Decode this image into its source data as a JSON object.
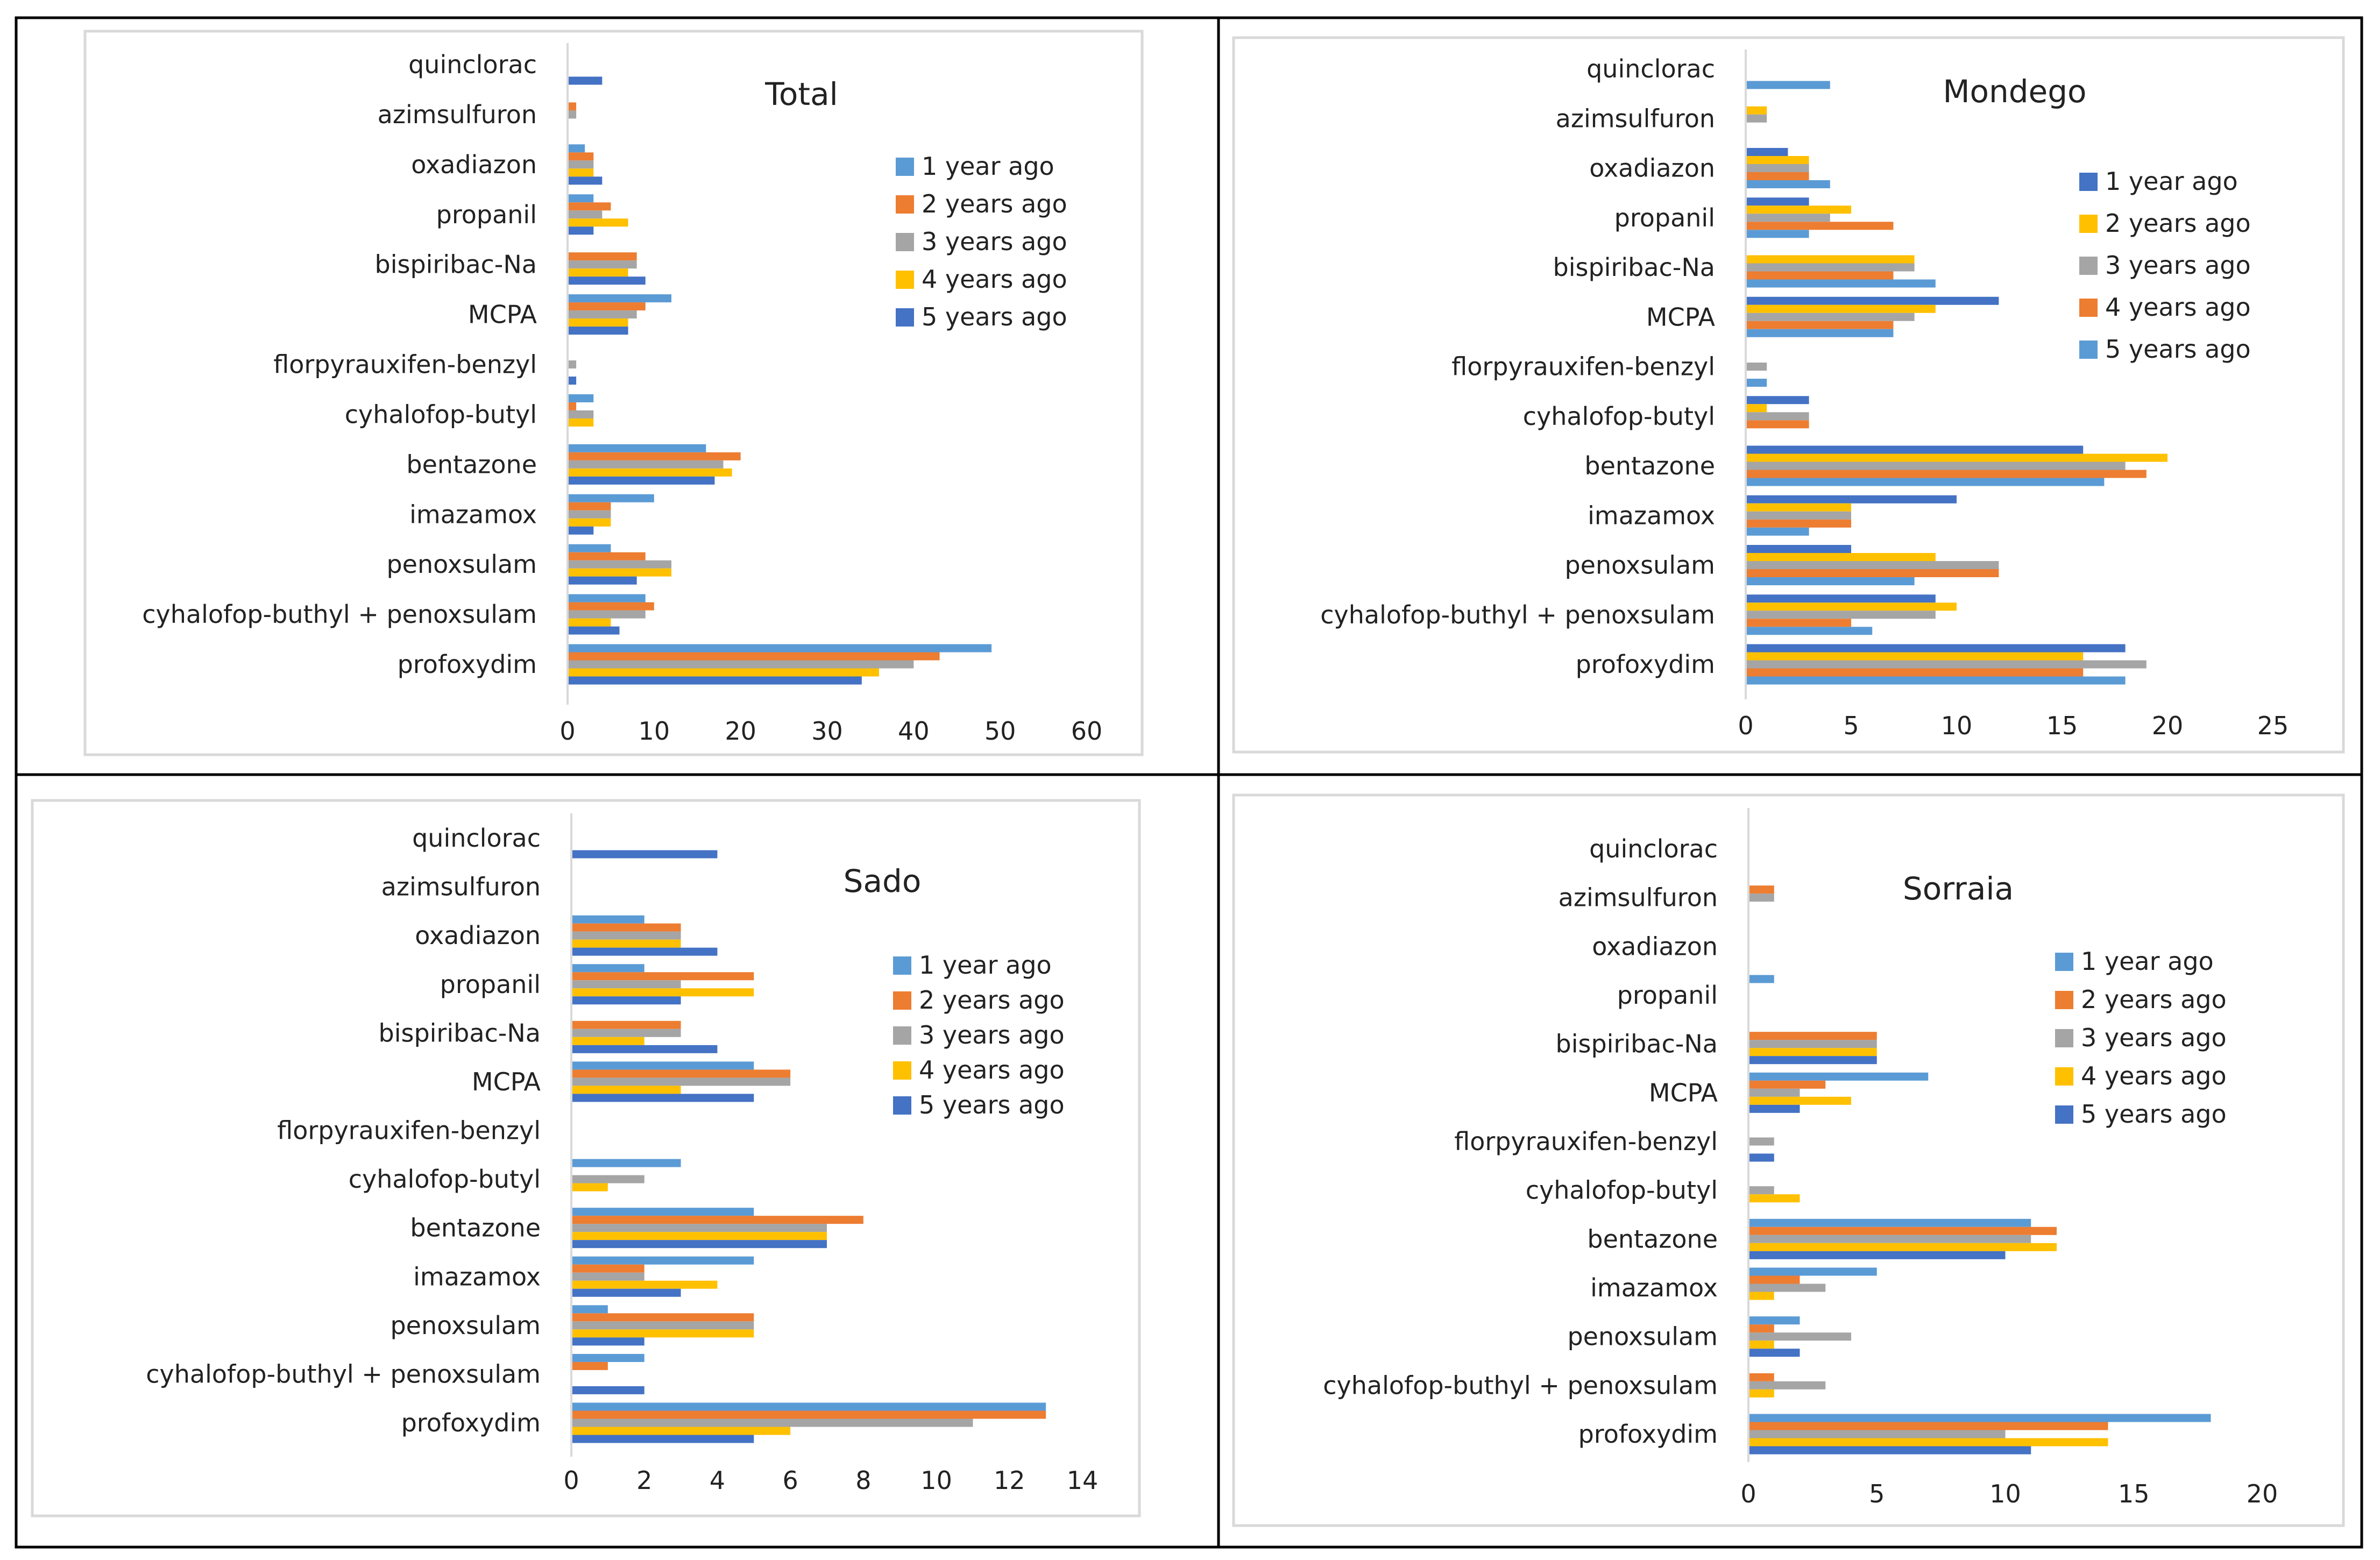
{
  "series_names": [
    "1 year ago",
    "2 years ago",
    "3 years ago",
    "4 years ago",
    "5 years ago"
  ],
  "chart_data": [
    {
      "type": "bar",
      "orientation": "horizontal",
      "title": "Total",
      "categories": [
        "quinclorac",
        "azimsulfuron",
        "oxadiazon",
        "propanil",
        "bispiribac-Na",
        "MCPA",
        "florpyrauxifen-benzyl",
        "cyhalofop-butyl",
        "bentazone",
        "imazamox",
        "penoxsulam",
        "cyhalofop-buthyl + penoxsulam",
        "profoxydim"
      ],
      "xlim": [
        0,
        60
      ],
      "xticks": [
        "0",
        "10",
        "20",
        "30",
        "40",
        "50",
        "60"
      ],
      "legend": "right",
      "series": [
        {
          "name": "1 year ago",
          "color": "#5B9BD5",
          "values": [
            0,
            0,
            2,
            3,
            0,
            12,
            0,
            3,
            16,
            10,
            5,
            9,
            49
          ]
        },
        {
          "name": "2 years ago",
          "color": "#ED7D31",
          "values": [
            0,
            1,
            3,
            5,
            8,
            9,
            0,
            1,
            20,
            5,
            9,
            10,
            43
          ]
        },
        {
          "name": "3 years ago",
          "color": "#A5A5A5",
          "values": [
            0,
            1,
            3,
            4,
            8,
            8,
            1,
            3,
            18,
            5,
            12,
            9,
            40
          ]
        },
        {
          "name": "4 years ago",
          "color": "#FFC000",
          "values": [
            0,
            0,
            3,
            7,
            7,
            7,
            0,
            3,
            19,
            5,
            12,
            5,
            36
          ]
        },
        {
          "name": "5 years ago",
          "color": "#4472C4",
          "values": [
            4,
            0,
            4,
            3,
            9,
            7,
            1,
            0,
            17,
            3,
            8,
            6,
            34
          ]
        }
      ]
    },
    {
      "type": "bar",
      "orientation": "horizontal",
      "title": "Mondego",
      "categories": [
        "quinclorac",
        "azimsulfuron",
        "oxadiazon",
        "propanil",
        "bispiribac-Na",
        "MCPA",
        "florpyrauxifen-benzyl",
        "cyhalofop-butyl",
        "bentazone",
        "imazamox",
        "penoxsulam",
        "cyhalofop-buthyl + penoxsulam",
        "profoxydim"
      ],
      "xlim": [
        0,
        25
      ],
      "xticks": [
        "0",
        "5",
        "10",
        "15",
        "20",
        "25"
      ],
      "legend": "right",
      "series": [
        {
          "name": "1 year ago",
          "color": "#4472C4",
          "values": [
            0,
            0,
            2,
            3,
            0,
            12,
            0,
            3,
            16,
            10,
            5,
            9,
            18
          ]
        },
        {
          "name": "2 years ago",
          "color": "#FFC000",
          "values": [
            0,
            1,
            3,
            5,
            8,
            9,
            0,
            1,
            20,
            5,
            9,
            10,
            16
          ]
        },
        {
          "name": "3 years ago",
          "color": "#A5A5A5",
          "values": [
            0,
            1,
            3,
            4,
            8,
            8,
            1,
            3,
            18,
            5,
            12,
            9,
            19
          ]
        },
        {
          "name": "4 years ago",
          "color": "#ED7D31",
          "values": [
            0,
            0,
            3,
            7,
            7,
            7,
            0,
            3,
            19,
            5,
            12,
            5,
            16
          ]
        },
        {
          "name": "5 years ago",
          "color": "#5B9BD5",
          "values": [
            4,
            0,
            4,
            3,
            9,
            7,
            1,
            0,
            17,
            3,
            8,
            6,
            18
          ]
        }
      ]
    },
    {
      "type": "bar",
      "orientation": "horizontal",
      "title": "Sado",
      "categories": [
        "quinclorac",
        "azimsulfuron",
        "oxadiazon",
        "propanil",
        "bispiribac-Na",
        "MCPA",
        "florpyrauxifen-benzyl",
        "cyhalofop-butyl",
        "bentazone",
        "imazamox",
        "penoxsulam",
        "cyhalofop-buthyl + penoxsulam",
        "profoxydim"
      ],
      "xlim": [
        0,
        14
      ],
      "xticks": [
        "0",
        "2",
        "4",
        "6",
        "8",
        "10",
        "12",
        "14"
      ],
      "legend": "right",
      "series": [
        {
          "name": "1 year ago",
          "color": "#5B9BD5",
          "values": [
            0,
            0,
            2,
            2,
            0,
            5,
            0,
            3,
            5,
            5,
            1,
            2,
            13
          ]
        },
        {
          "name": "2 years ago",
          "color": "#ED7D31",
          "values": [
            0,
            0,
            3,
            5,
            3,
            6,
            0,
            0,
            8,
            2,
            5,
            1,
            13
          ]
        },
        {
          "name": "3 years ago",
          "color": "#A5A5A5",
          "values": [
            0,
            0,
            3,
            3,
            3,
            6,
            0,
            2,
            7,
            2,
            5,
            0,
            11
          ]
        },
        {
          "name": "4 years ago",
          "color": "#FFC000",
          "values": [
            0,
            0,
            3,
            5,
            2,
            3,
            0,
            1,
            7,
            4,
            5,
            0,
            6
          ]
        },
        {
          "name": "5 years ago",
          "color": "#4472C4",
          "values": [
            4,
            0,
            4,
            3,
            4,
            5,
            0,
            0,
            7,
            3,
            2,
            2,
            5
          ]
        }
      ]
    },
    {
      "type": "bar",
      "orientation": "horizontal",
      "title": "Sorraia",
      "categories": [
        "quinclorac",
        "azimsulfuron",
        "oxadiazon",
        "propanil",
        "bispiribac-Na",
        "MCPA",
        "florpyrauxifen-benzyl",
        "cyhalofop-butyl",
        "bentazone",
        "imazamox",
        "penoxsulam",
        "cyhalofop-buthyl + penoxsulam",
        "profoxydim"
      ],
      "xlim": [
        0,
        20
      ],
      "xticks": [
        "0",
        "5",
        "10",
        "15",
        "20"
      ],
      "legend": "right",
      "series": [
        {
          "name": "1 year ago",
          "color": "#5B9BD5",
          "values": [
            0,
            0,
            0,
            1,
            0,
            7,
            0,
            0,
            11,
            5,
            2,
            0,
            18
          ]
        },
        {
          "name": "2 years ago",
          "color": "#ED7D31",
          "values": [
            0,
            1,
            0,
            0,
            5,
            3,
            0,
            0,
            12,
            2,
            1,
            1,
            14
          ]
        },
        {
          "name": "3 years ago",
          "color": "#A5A5A5",
          "values": [
            0,
            1,
            0,
            0,
            5,
            2,
            1,
            1,
            11,
            3,
            4,
            3,
            10
          ]
        },
        {
          "name": "4 years ago",
          "color": "#FFC000",
          "values": [
            0,
            0,
            0,
            0,
            5,
            4,
            0,
            2,
            12,
            1,
            1,
            1,
            14
          ]
        },
        {
          "name": "5 years ago",
          "color": "#4472C4",
          "values": [
            0,
            0,
            0,
            0,
            5,
            2,
            1,
            0,
            10,
            0,
            2,
            0,
            11
          ]
        }
      ]
    }
  ]
}
